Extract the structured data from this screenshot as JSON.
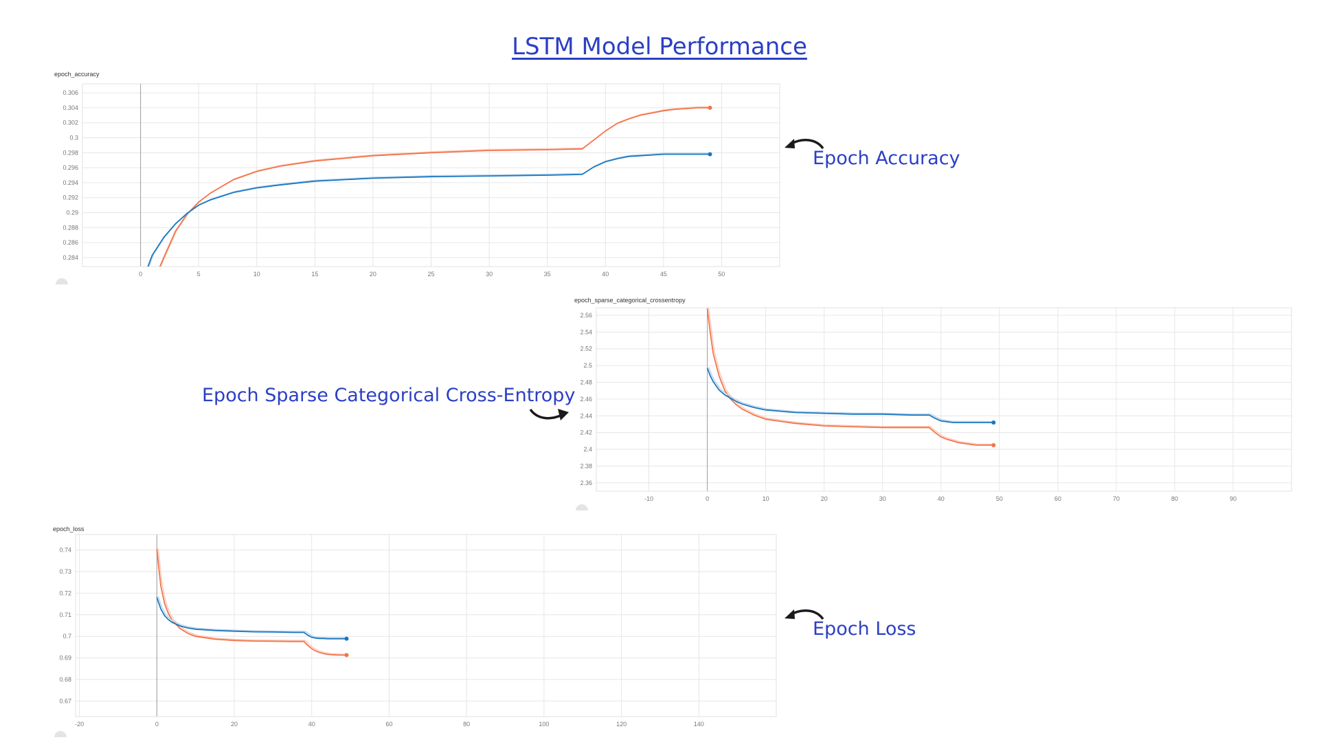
{
  "page": {
    "title": "LSTM Model Performance"
  },
  "callouts": {
    "accuracy": "Epoch Accuracy",
    "crossentropy": "Epoch Sparse Categorical Cross-Entropy",
    "loss": "Epoch Loss"
  },
  "colors": {
    "orange": "#f4734a",
    "blue": "#1a77c0",
    "orange_raw": "#f9c9b6",
    "blue_raw": "#b6d4ec"
  },
  "chart_data": [
    {
      "id": "accuracy",
      "type": "line",
      "title": "epoch_accuracy",
      "xlim": [
        -5,
        55
      ],
      "ylim": [
        0.2828,
        0.3072
      ],
      "xticks": [
        0,
        5,
        10,
        15,
        20,
        25,
        30,
        35,
        40,
        45,
        50
      ],
      "yticks": [
        0.284,
        0.286,
        0.288,
        0.29,
        0.292,
        0.294,
        0.296,
        0.298,
        0.3,
        0.302,
        0.304,
        0.306
      ],
      "ytick_labels": [
        "0.284",
        "0.286",
        "0.288",
        "0.29",
        "0.292",
        "0.294",
        "0.296",
        "0.298",
        "0.3",
        "0.302",
        "0.304",
        "0.306"
      ],
      "grid": true,
      "series": [
        {
          "color": "orange",
          "x": [
            1.5,
            2,
            3,
            4,
            5,
            6,
            8,
            10,
            12,
            15,
            20,
            25,
            30,
            35,
            38,
            39,
            40,
            41,
            42,
            43,
            44,
            45,
            46,
            47,
            48,
            49
          ],
          "y": [
            0.2822,
            0.284,
            0.2875,
            0.2898,
            0.2914,
            0.2926,
            0.2944,
            0.2955,
            0.2962,
            0.2969,
            0.2976,
            0.298,
            0.2983,
            0.2984,
            0.2985,
            0.2997,
            0.3009,
            0.3019,
            0.3025,
            0.303,
            0.3033,
            0.3036,
            0.3038,
            0.3039,
            0.304,
            0.304
          ]
        },
        {
          "color": "blue",
          "x": [
            0.5,
            1,
            2,
            3,
            4,
            5,
            6,
            8,
            10,
            12,
            15,
            20,
            25,
            30,
            35,
            38,
            39,
            40,
            41,
            42,
            43,
            44,
            45,
            46,
            47,
            48,
            49
          ],
          "y": [
            0.2822,
            0.2843,
            0.2867,
            0.2885,
            0.2899,
            0.291,
            0.2917,
            0.2927,
            0.2933,
            0.2937,
            0.2942,
            0.2946,
            0.2948,
            0.2949,
            0.295,
            0.2951,
            0.2961,
            0.2968,
            0.2972,
            0.2975,
            0.2976,
            0.2977,
            0.2978,
            0.2978,
            0.2978,
            0.2978,
            0.2978
          ]
        }
      ]
    },
    {
      "id": "crossentropy",
      "type": "line",
      "title": "epoch_sparse_categorical_crossentropy",
      "xlim": [
        -19,
        100
      ],
      "ylim": [
        2.35,
        2.569
      ],
      "xticks": [
        -10,
        0,
        10,
        20,
        30,
        40,
        50,
        60,
        70,
        80,
        90
      ],
      "yticks": [
        2.36,
        2.38,
        2.4,
        2.42,
        2.44,
        2.46,
        2.48,
        2.5,
        2.52,
        2.54,
        2.56
      ],
      "ytick_labels": [
        "2.36",
        "2.38",
        "2.4",
        "2.42",
        "2.44",
        "2.46",
        "2.48",
        "2.5",
        "2.52",
        "2.54",
        "2.56"
      ],
      "grid": true,
      "series": [
        {
          "color": "orange",
          "x": [
            0,
            0.5,
            1,
            2,
            3,
            4,
            5,
            6,
            8,
            10,
            15,
            20,
            25,
            30,
            35,
            38,
            39,
            40,
            41,
            42,
            43,
            44,
            45,
            46,
            47,
            48,
            49
          ],
          "y": [
            2.568,
            2.54,
            2.515,
            2.488,
            2.47,
            2.46,
            2.453,
            2.448,
            2.441,
            2.436,
            2.431,
            2.428,
            2.427,
            2.426,
            2.426,
            2.426,
            2.42,
            2.415,
            2.412,
            2.41,
            2.408,
            2.407,
            2.406,
            2.405,
            2.405,
            2.405,
            2.405
          ]
        },
        {
          "color": "blue",
          "x": [
            0,
            0.5,
            1,
            2,
            3,
            4,
            5,
            6,
            8,
            10,
            15,
            20,
            25,
            30,
            35,
            38,
            39,
            40,
            41,
            42,
            43,
            44,
            45,
            46,
            47,
            48,
            49
          ],
          "y": [
            2.497,
            2.488,
            2.481,
            2.471,
            2.465,
            2.461,
            2.457,
            2.454,
            2.45,
            2.447,
            2.444,
            2.443,
            2.442,
            2.442,
            2.441,
            2.441,
            2.437,
            2.434,
            2.433,
            2.432,
            2.432,
            2.432,
            2.432,
            2.432,
            2.432,
            2.432,
            2.432
          ]
        }
      ]
    },
    {
      "id": "loss",
      "type": "line",
      "title": "epoch_loss",
      "xlim": [
        -21,
        160
      ],
      "ylim": [
        0.6628,
        0.7472
      ],
      "xticks": [
        -20,
        0,
        20,
        40,
        60,
        80,
        100,
        120,
        140
      ],
      "yticks": [
        0.67,
        0.68,
        0.69,
        0.7,
        0.71,
        0.72,
        0.73,
        0.74
      ],
      "ytick_labels": [
        "0.67",
        "0.68",
        "0.69",
        "0.7",
        "0.71",
        "0.72",
        "0.73",
        "0.74"
      ],
      "grid": true,
      "series": [
        {
          "color": "orange",
          "x": [
            0,
            1,
            2,
            3,
            4,
            6,
            8,
            10,
            15,
            20,
            25,
            30,
            35,
            38,
            39,
            40,
            41,
            42,
            43,
            44,
            45,
            46,
            47,
            48,
            49
          ],
          "y": [
            0.7404,
            0.7235,
            0.7152,
            0.7105,
            0.7073,
            0.7036,
            0.7014,
            0.7,
            0.6987,
            0.6981,
            0.6978,
            0.6977,
            0.6976,
            0.6976,
            0.6958,
            0.6943,
            0.6932,
            0.6925,
            0.692,
            0.6917,
            0.6915,
            0.6914,
            0.6913,
            0.6913,
            0.6913
          ]
        },
        {
          "color": "blue",
          "x": [
            0,
            1,
            2,
            3,
            4,
            6,
            8,
            10,
            15,
            20,
            25,
            30,
            35,
            38,
            39,
            40,
            41,
            42,
            43,
            44,
            45,
            46,
            47,
            48,
            49
          ],
          "y": [
            0.7181,
            0.7128,
            0.7096,
            0.7077,
            0.7064,
            0.7048,
            0.7039,
            0.7033,
            0.7027,
            0.7024,
            0.7021,
            0.702,
            0.7018,
            0.7018,
            0.7005,
            0.6996,
            0.6992,
            0.699,
            0.699,
            0.6989,
            0.6989,
            0.6989,
            0.6989,
            0.6989,
            0.6989
          ]
        }
      ]
    }
  ]
}
